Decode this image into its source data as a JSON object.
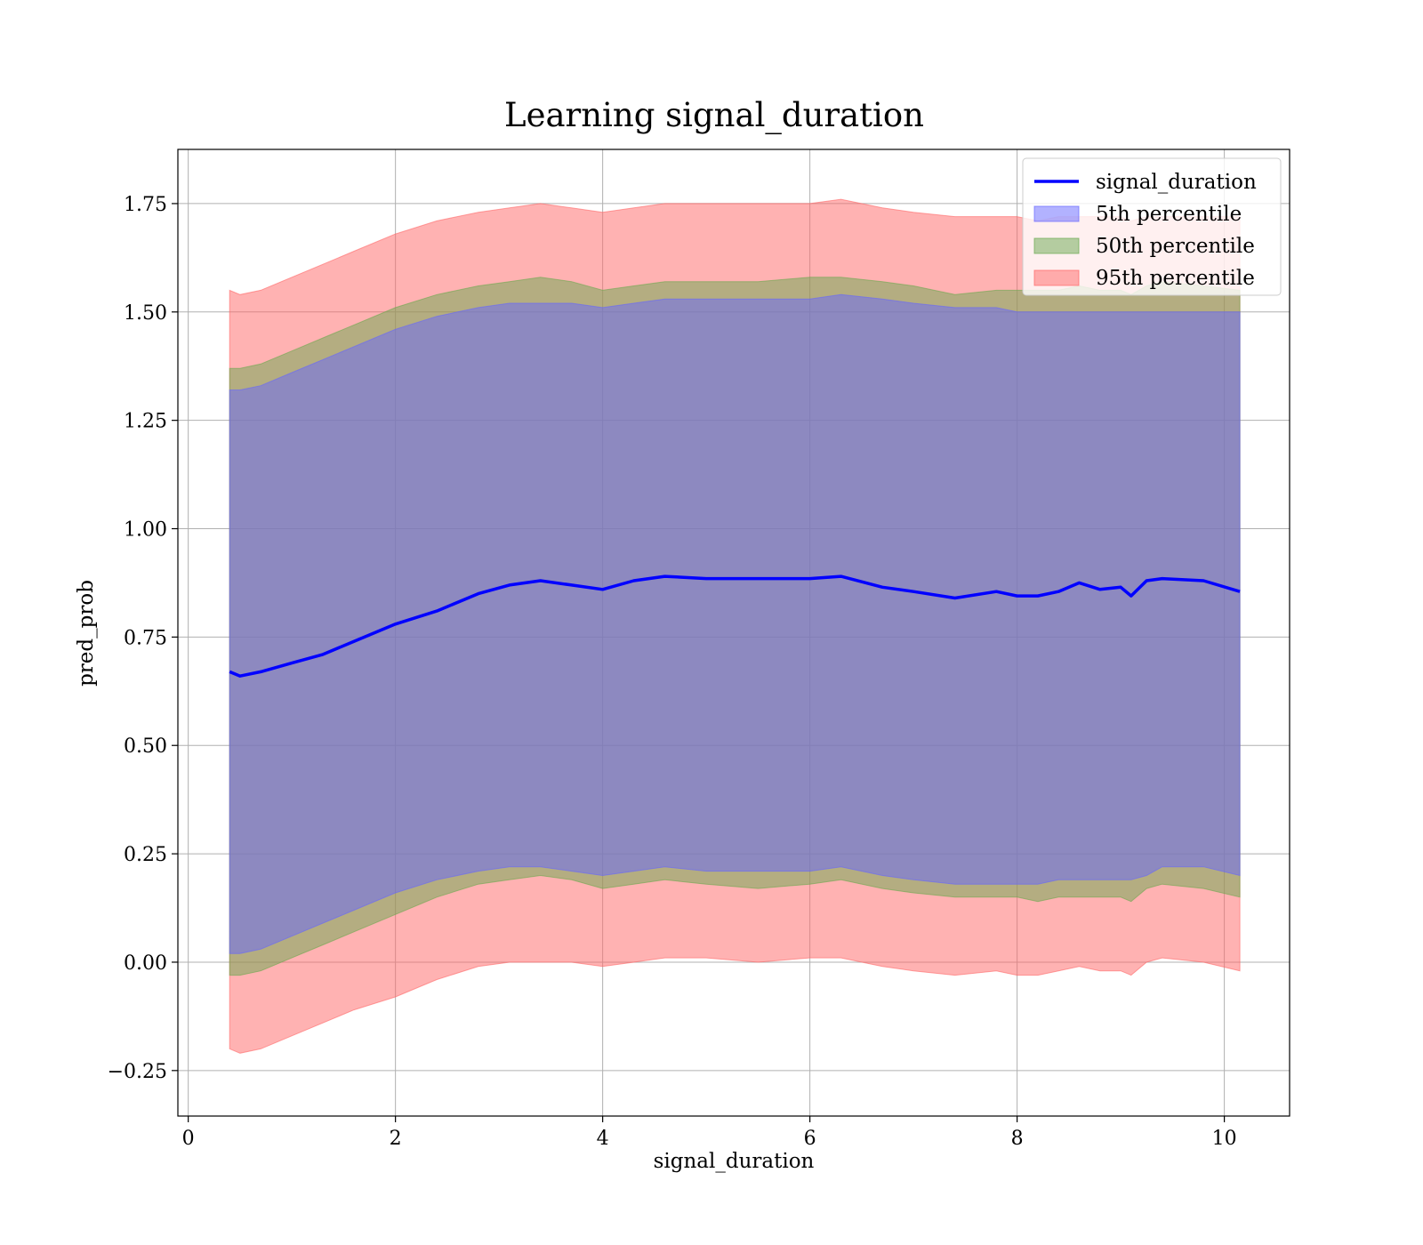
{
  "chart_data": {
    "type": "area",
    "title": "Learning signal_duration",
    "xlabel": "signal_duration",
    "ylabel": "pred_prob",
    "xlim": [
      -0.1,
      10.63
    ],
    "ylim": [
      -0.355,
      1.875
    ],
    "xticks": [
      0,
      2,
      4,
      6,
      8,
      10
    ],
    "xtick_labels": [
      "0",
      "2",
      "4",
      "6",
      "8",
      "10"
    ],
    "yticks": [
      -0.25,
      0.0,
      0.25,
      0.5,
      0.75,
      1.0,
      1.25,
      1.5,
      1.75
    ],
    "ytick_labels": [
      "−0.25",
      "0.00",
      "0.25",
      "0.50",
      "0.75",
      "1.00",
      "1.25",
      "1.50",
      "1.75"
    ],
    "grid": true,
    "legend_position": "top-right",
    "x": [
      0.4,
      0.5,
      0.7,
      1.0,
      1.3,
      1.6,
      2.0,
      2.4,
      2.8,
      3.1,
      3.4,
      3.7,
      4.0,
      4.3,
      4.6,
      5.0,
      5.5,
      6.0,
      6.3,
      6.7,
      7.0,
      7.4,
      7.8,
      8.0,
      8.2,
      8.4,
      8.6,
      8.8,
      9.0,
      9.1,
      9.25,
      9.4,
      9.8,
      10.15
    ],
    "series": [
      {
        "name": "signal_duration",
        "kind": "line",
        "color": "#0000ff",
        "values": [
          0.67,
          0.66,
          0.67,
          0.69,
          0.71,
          0.74,
          0.78,
          0.81,
          0.85,
          0.87,
          0.88,
          0.87,
          0.86,
          0.88,
          0.89,
          0.885,
          0.885,
          0.885,
          0.89,
          0.865,
          0.855,
          0.84,
          0.855,
          0.845,
          0.845,
          0.855,
          0.875,
          0.86,
          0.865,
          0.845,
          0.88,
          0.885,
          0.88,
          0.855
        ]
      },
      {
        "name": "5th percentile",
        "kind": "band",
        "color": "#6666ff",
        "lower": [
          0.02,
          0.02,
          0.03,
          0.06,
          0.09,
          0.12,
          0.16,
          0.19,
          0.21,
          0.22,
          0.22,
          0.21,
          0.2,
          0.21,
          0.22,
          0.21,
          0.21,
          0.21,
          0.22,
          0.2,
          0.19,
          0.18,
          0.18,
          0.18,
          0.18,
          0.19,
          0.19,
          0.19,
          0.19,
          0.19,
          0.2,
          0.22,
          0.22,
          0.2
        ],
        "upper": [
          1.32,
          1.32,
          1.33,
          1.36,
          1.39,
          1.42,
          1.46,
          1.49,
          1.51,
          1.52,
          1.52,
          1.52,
          1.51,
          1.52,
          1.53,
          1.53,
          1.53,
          1.53,
          1.54,
          1.53,
          1.52,
          1.51,
          1.51,
          1.5,
          1.5,
          1.5,
          1.5,
          1.5,
          1.5,
          1.5,
          1.5,
          1.5,
          1.5,
          1.5
        ]
      },
      {
        "name": "50th percentile",
        "kind": "band",
        "color": "#6aa84f",
        "lower": [
          -0.03,
          -0.03,
          -0.02,
          0.01,
          0.04,
          0.07,
          0.11,
          0.15,
          0.18,
          0.19,
          0.2,
          0.19,
          0.17,
          0.18,
          0.19,
          0.18,
          0.17,
          0.18,
          0.19,
          0.17,
          0.16,
          0.15,
          0.15,
          0.15,
          0.14,
          0.15,
          0.15,
          0.15,
          0.15,
          0.14,
          0.17,
          0.18,
          0.17,
          0.15
        ],
        "upper": [
          1.37,
          1.37,
          1.38,
          1.41,
          1.44,
          1.47,
          1.51,
          1.54,
          1.56,
          1.57,
          1.58,
          1.57,
          1.55,
          1.56,
          1.57,
          1.57,
          1.57,
          1.58,
          1.58,
          1.57,
          1.56,
          1.54,
          1.55,
          1.55,
          1.55,
          1.55,
          1.56,
          1.55,
          1.55,
          1.54,
          1.56,
          1.57,
          1.56,
          1.55
        ]
      },
      {
        "name": "95th percentile",
        "kind": "band",
        "color": "#ff6666",
        "lower": [
          -0.2,
          -0.21,
          -0.2,
          -0.17,
          -0.14,
          -0.11,
          -0.08,
          -0.04,
          -0.01,
          0.0,
          0.0,
          0.0,
          -0.01,
          0.0,
          0.01,
          0.01,
          0.0,
          0.01,
          0.01,
          -0.01,
          -0.02,
          -0.03,
          -0.02,
          -0.03,
          -0.03,
          -0.02,
          -0.01,
          -0.02,
          -0.02,
          -0.03,
          0.0,
          0.01,
          0.0,
          -0.02
        ],
        "upper": [
          1.55,
          1.54,
          1.55,
          1.58,
          1.61,
          1.64,
          1.68,
          1.71,
          1.73,
          1.74,
          1.75,
          1.74,
          1.73,
          1.74,
          1.75,
          1.75,
          1.75,
          1.75,
          1.76,
          1.74,
          1.73,
          1.72,
          1.72,
          1.72,
          1.71,
          1.72,
          1.72,
          1.72,
          1.72,
          1.71,
          1.72,
          1.72,
          1.72,
          1.72
        ]
      }
    ]
  }
}
